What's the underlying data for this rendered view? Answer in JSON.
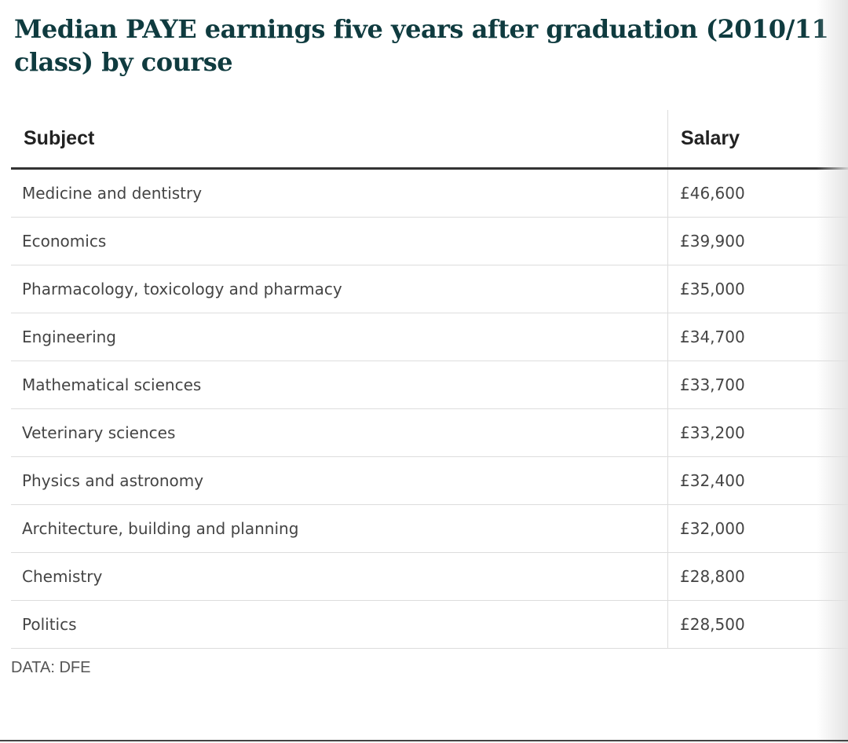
{
  "title": "Median PAYE earnings five years after graduation (2010/11 class) by course",
  "table": {
    "headers": [
      "Subject",
      "Salary"
    ],
    "rows": [
      {
        "subject": "Medicine and dentistry",
        "salary": "£46,600"
      },
      {
        "subject": "Economics",
        "salary": "£39,900"
      },
      {
        "subject": "Pharmacology, toxicology and pharmacy",
        "salary": "£35,000"
      },
      {
        "subject": "Engineering",
        "salary": "£34,700"
      },
      {
        "subject": "Mathematical sciences",
        "salary": "£33,700"
      },
      {
        "subject": "Veterinary sciences",
        "salary": "£33,200"
      },
      {
        "subject": "Physics and astronomy",
        "salary": "£32,400"
      },
      {
        "subject": "Architecture, building and planning",
        "salary": "£32,000"
      },
      {
        "subject": "Chemistry",
        "salary": "£28,800"
      },
      {
        "subject": "Politics",
        "salary": "£28,500"
      }
    ]
  },
  "source": "DATA: DFE",
  "colors": {
    "title": "#0f3b3f",
    "text": "#444444",
    "rule": "#333333"
  },
  "chart_data": {
    "type": "table",
    "title": "Median PAYE earnings five years after graduation (2010/11 class) by course",
    "columns": [
      "Subject",
      "Salary"
    ],
    "categories": [
      "Medicine and dentistry",
      "Economics",
      "Pharmacology, toxicology and pharmacy",
      "Engineering",
      "Mathematical sciences",
      "Veterinary sciences",
      "Physics and astronomy",
      "Architecture, building and planning",
      "Chemistry",
      "Politics"
    ],
    "values": [
      46600,
      39900,
      35000,
      34700,
      33700,
      33200,
      32400,
      32000,
      28800,
      28500
    ],
    "source": "DATA: DFE"
  }
}
